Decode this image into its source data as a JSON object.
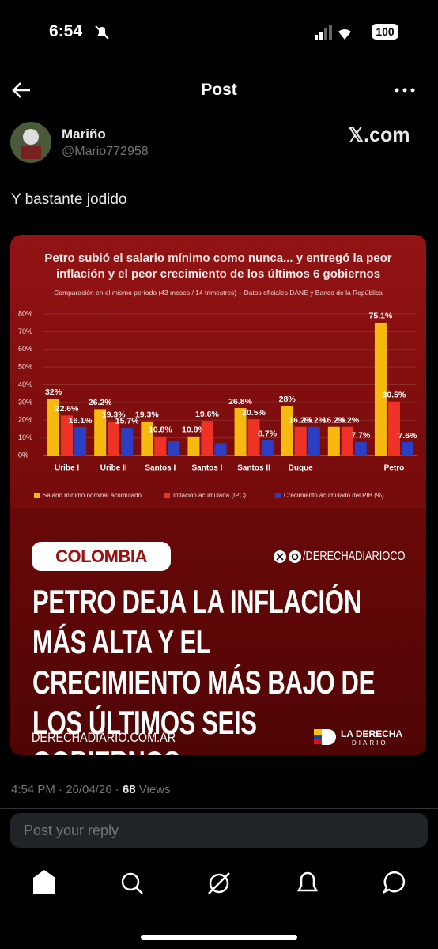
{
  "status_bar": {
    "time": "6:54",
    "battery": 100
  },
  "header": {
    "title": "Post"
  },
  "post": {
    "author_name": "Mariño",
    "author_handle": "@Mario772958",
    "source": "𝕏.com",
    "text": "Y bastante jodido",
    "image": {
      "banner": "COLOMBIA",
      "social_handle": "/DERECHADIARIOCO",
      "headline": "PETRO DEJA LA INFLACIÓN MÁS ALTA Y EL CRECIMIENTO MÁS BAJO DE LOS ÚLTIMOS SEIS GOBIERNOS",
      "website": "DERECHADIARIO.COM.AR",
      "brand_line1": "LA DERECHA",
      "brand_line2": "DIARIO"
    },
    "meta": {
      "timestamp": "4:54 PM · 26/04/26 ·",
      "views_count": 68,
      "views_label": "Views"
    }
  },
  "reply": {
    "placeholder": "Post your reply"
  },
  "chart_data": {
    "type": "bar",
    "title": "Petro subió el salario mínimo como nunca... y entregó la peor inflación y el peor crecimiento de los últimos 6 gobiernos",
    "subtitle": "Comparación en el mismo período (43 meses / 14 trimestres) – Datos oficiales DANE y Banco de la República",
    "categories": [
      "Uribe I",
      "Uribe II",
      "Santos I",
      "Santos I",
      "Santos II",
      "Duque",
      null,
      "Petro"
    ],
    "series": [
      {
        "name": "Salario mínimo nominal acumulado",
        "color": "#f6b90f",
        "values": [
          32,
          26.2,
          19.3,
          10.8,
          26.8,
          28,
          16.2,
          75.1
        ],
        "value_labels": [
          "32%",
          "26.2%",
          "19.3%",
          "10.8%",
          "26.8%",
          "28%",
          "16.2%",
          "75.1%"
        ]
      },
      {
        "name": "Inflación acumulada (IPC)",
        "color": "#ec3326",
        "values": [
          22.6,
          19.3,
          10.8,
          19.6,
          20.5,
          16.2,
          16.2,
          30.5
        ],
        "value_labels": [
          "22.6%",
          "19.3%",
          "10.8%",
          "19.6%",
          "20.5%",
          "16.2%",
          "16.2%",
          "30.5%"
        ]
      },
      {
        "name": "Crecimiento acumulado del PIB (%)",
        "color": "#2b3fc4",
        "values": [
          16.1,
          15.7,
          8,
          7,
          8.7,
          16.2,
          7.7,
          7.6
        ],
        "value_labels": [
          "16.1%",
          "15.7%",
          null,
          null,
          "8.7%",
          "16.2%",
          "7.7%",
          "7.6%"
        ]
      }
    ],
    "ylim": [
      0,
      80
    ],
    "yticks": [
      {
        "value": 0,
        "label": "0%"
      },
      {
        "value": 10,
        "label": "10%"
      },
      {
        "value": 20,
        "label": "20%"
      },
      {
        "value": 30,
        "label": "30%"
      },
      {
        "value": 40,
        "label": "40%"
      },
      {
        "value": 50,
        "label": "50%"
      },
      {
        "value": 60,
        "label": "60%"
      },
      {
        "value": 70,
        "label": "70%"
      },
      {
        "value": 80,
        "label": "80%"
      }
    ],
    "grid": true,
    "legend": "bottom"
  }
}
